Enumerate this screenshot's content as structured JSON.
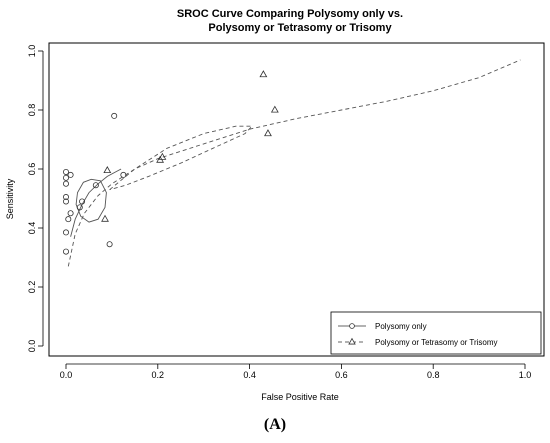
{
  "caption": "(A)",
  "chart_data": {
    "type": "scatter",
    "title_line1": "SROC Curve Comparing Polysomy only vs.",
    "title_line2": "Polysomy or Tetrasomy or Trisomy",
    "xlabel": "False Positive Rate",
    "ylabel": "Sensitivity",
    "xlim": [
      0.0,
      1.0
    ],
    "ylim": [
      0.0,
      1.0
    ],
    "x_ticks": [
      0.0,
      0.2,
      0.4,
      0.6,
      0.8,
      1.0
    ],
    "y_ticks": [
      0.0,
      0.2,
      0.4,
      0.6,
      0.8,
      1.0
    ],
    "x_tick_labels": [
      "0.0",
      "0.2",
      "0.4",
      "0.6",
      "0.8",
      "1.0"
    ],
    "y_tick_labels": [
      "0.0",
      "0.2",
      "0.4",
      "0.6",
      "0.8",
      "1.0"
    ],
    "grid": false,
    "legend_position": "bottom-right",
    "series": [
      {
        "name": "Polysomy only",
        "marker": "circle",
        "line": "solid",
        "points": [
          {
            "x": 0.0,
            "y": 0.59
          },
          {
            "x": 0.01,
            "y": 0.58
          },
          {
            "x": 0.0,
            "y": 0.57
          },
          {
            "x": 0.0,
            "y": 0.55
          },
          {
            "x": 0.0,
            "y": 0.505
          },
          {
            "x": 0.0,
            "y": 0.49
          },
          {
            "x": 0.01,
            "y": 0.45
          },
          {
            "x": 0.005,
            "y": 0.43
          },
          {
            "x": 0.0,
            "y": 0.385
          },
          {
            "x": 0.0,
            "y": 0.32
          },
          {
            "x": 0.035,
            "y": 0.49
          },
          {
            "x": 0.03,
            "y": 0.47
          },
          {
            "x": 0.065,
            "y": 0.545
          },
          {
            "x": 0.095,
            "y": 0.345
          },
          {
            "x": 0.105,
            "y": 0.78
          },
          {
            "x": 0.125,
            "y": 0.58
          }
        ],
        "curve": [
          {
            "x": 0.01,
            "y": 0.37
          },
          {
            "x": 0.02,
            "y": 0.43
          },
          {
            "x": 0.035,
            "y": 0.48
          },
          {
            "x": 0.05,
            "y": 0.52
          },
          {
            "x": 0.07,
            "y": 0.55
          },
          {
            "x": 0.09,
            "y": 0.575
          },
          {
            "x": 0.12,
            "y": 0.6
          }
        ]
      },
      {
        "name": "Polysomy or Tetrasomy or Trisomy",
        "marker": "triangle",
        "line": "dashed",
        "points": [
          {
            "x": 0.09,
            "y": 0.595
          },
          {
            "x": 0.085,
            "y": 0.43
          },
          {
            "x": 0.205,
            "y": 0.63
          },
          {
            "x": 0.21,
            "y": 0.64
          },
          {
            "x": 0.43,
            "y": 0.92
          },
          {
            "x": 0.455,
            "y": 0.8
          },
          {
            "x": 0.44,
            "y": 0.72
          }
        ],
        "curve": [
          {
            "x": 0.005,
            "y": 0.27
          },
          {
            "x": 0.02,
            "y": 0.38
          },
          {
            "x": 0.04,
            "y": 0.45
          },
          {
            "x": 0.07,
            "y": 0.51
          },
          {
            "x": 0.1,
            "y": 0.55
          },
          {
            "x": 0.15,
            "y": 0.6
          },
          {
            "x": 0.2,
            "y": 0.635
          },
          {
            "x": 0.3,
            "y": 0.685
          },
          {
            "x": 0.4,
            "y": 0.735
          },
          {
            "x": 0.5,
            "y": 0.77
          },
          {
            "x": 0.6,
            "y": 0.8
          },
          {
            "x": 0.7,
            "y": 0.83
          },
          {
            "x": 0.8,
            "y": 0.865
          },
          {
            "x": 0.9,
            "y": 0.91
          },
          {
            "x": 0.99,
            "y": 0.97
          }
        ]
      }
    ],
    "confidence_regions": [
      {
        "series": "Polysomy only",
        "line": "solid",
        "points": [
          {
            "x": 0.055,
            "y": 0.565
          },
          {
            "x": 0.075,
            "y": 0.56
          },
          {
            "x": 0.088,
            "y": 0.52
          },
          {
            "x": 0.085,
            "y": 0.47
          },
          {
            "x": 0.07,
            "y": 0.43
          },
          {
            "x": 0.05,
            "y": 0.42
          },
          {
            "x": 0.032,
            "y": 0.44
          },
          {
            "x": 0.022,
            "y": 0.48
          },
          {
            "x": 0.025,
            "y": 0.52
          },
          {
            "x": 0.038,
            "y": 0.555
          }
        ]
      },
      {
        "series": "Polysomy or Tetrasomy or Trisomy",
        "line": "dashed",
        "points": [
          {
            "x": 0.095,
            "y": 0.53
          },
          {
            "x": 0.15,
            "y": 0.6
          },
          {
            "x": 0.22,
            "y": 0.67
          },
          {
            "x": 0.3,
            "y": 0.72
          },
          {
            "x": 0.37,
            "y": 0.745
          },
          {
            "x": 0.405,
            "y": 0.745
          },
          {
            "x": 0.39,
            "y": 0.72
          },
          {
            "x": 0.32,
            "y": 0.67
          },
          {
            "x": 0.25,
            "y": 0.62
          },
          {
            "x": 0.18,
            "y": 0.575
          },
          {
            "x": 0.13,
            "y": 0.545
          }
        ]
      }
    ]
  }
}
